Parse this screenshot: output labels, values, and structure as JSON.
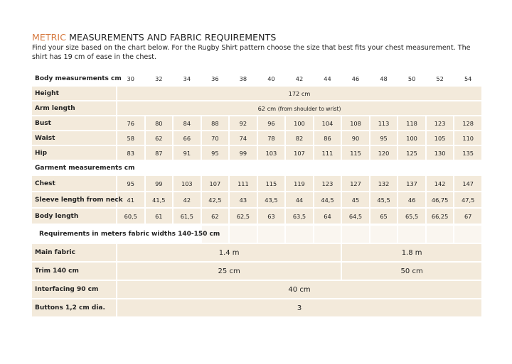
{
  "title": {
    "highlight": "METRIC",
    "rest": "MEASUREMENTS AND FABRIC REQUIREMENTS"
  },
  "intro": "Find your size based on the chart below. For the Rugby Shirt pattern choose the size that best fits your chest measurement. The shirt has 19 cm of ease in the chest.",
  "body": {
    "header": "Body measurements cm",
    "sizes": [
      "30",
      "32",
      "34",
      "36",
      "38",
      "40",
      "42",
      "44",
      "46",
      "48",
      "50",
      "52",
      "54"
    ],
    "spanning": [
      {
        "label": "Height",
        "value": "172 cm"
      },
      {
        "label": "Arm length",
        "value": "62 cm",
        "note": "(from shoulder to wrist)"
      }
    ],
    "rows": [
      {
        "label": "Bust",
        "values": [
          "76",
          "80",
          "84",
          "88",
          "92",
          "96",
          "100",
          "104",
          "108",
          "113",
          "118",
          "123",
          "128"
        ]
      },
      {
        "label": "Waist",
        "values": [
          "58",
          "62",
          "66",
          "70",
          "74",
          "78",
          "82",
          "86",
          "90",
          "95",
          "100",
          "105",
          "110"
        ]
      },
      {
        "label": "Hip",
        "values": [
          "83",
          "87",
          "91",
          "95",
          "99",
          "103",
          "107",
          "111",
          "115",
          "120",
          "125",
          "130",
          "135"
        ]
      }
    ]
  },
  "garment": {
    "header": "Garment measurements cm",
    "rows": [
      {
        "label": "Chest",
        "values": [
          "95",
          "99",
          "103",
          "107",
          "111",
          "115",
          "119",
          "123",
          "127",
          "132",
          "137",
          "142",
          "147"
        ]
      },
      {
        "label": "Sleeve length from neck",
        "values": [
          "41",
          "41,5",
          "42",
          "42,5",
          "43",
          "43,5",
          "44",
          "44,5",
          "45",
          "45,5",
          "46",
          "46,75",
          "47,5"
        ]
      },
      {
        "label": "Body length",
        "values": [
          "60,5",
          "61",
          "61,5",
          "62",
          "62,5",
          "63",
          "63,5",
          "64",
          "64,5",
          "65",
          "65,5",
          "66,25",
          "67"
        ]
      }
    ]
  },
  "requirements": {
    "header": "Requirements in meters fabric widths 140-150 cm",
    "rows": [
      {
        "label": "Main fabric",
        "values": [
          "1.4 m",
          "1.8 m"
        ]
      },
      {
        "label": "Trim  140 cm",
        "values": [
          "25 cm",
          "50 cm"
        ]
      },
      {
        "label": "Interfacing 90 cm",
        "values": [
          "40 cm"
        ]
      },
      {
        "label": "Buttons 1,2 cm dia.",
        "values": [
          "3"
        ]
      }
    ]
  }
}
